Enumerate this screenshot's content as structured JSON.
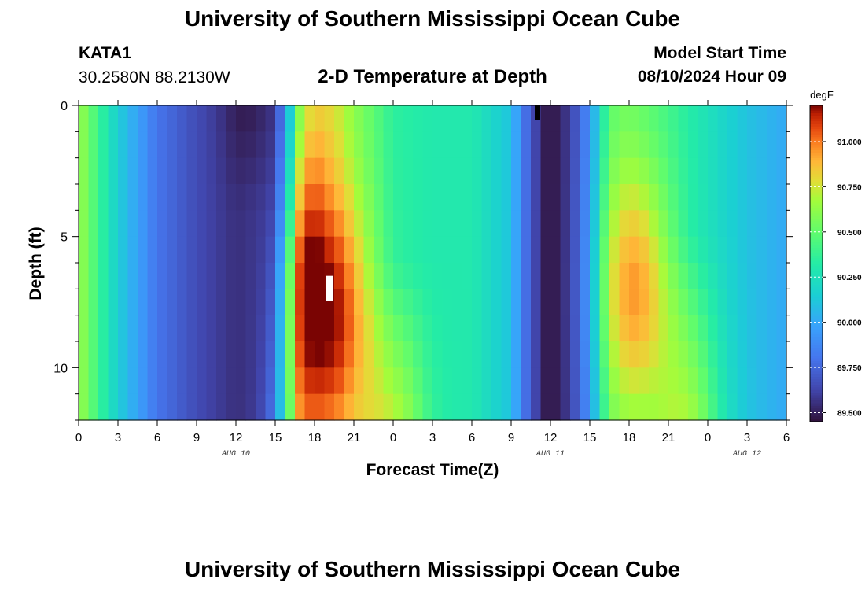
{
  "header": {
    "title": "University of Southern Mississippi Ocean Cube",
    "footer_title": "University of Southern Mississippi Ocean Cube",
    "station_id": "KATA1",
    "station_coords": "30.2580N  88.2130W",
    "plot_title": "2-D Temperature at Depth",
    "model_start_label": "Model Start Time",
    "model_start_value": "08/10/2024 Hour 09"
  },
  "chart_data": {
    "type": "heatmap",
    "title": "2-D Temperature at Depth",
    "xlabel": "Forecast Time(Z)",
    "ylabel": "Depth (ft)",
    "x_tick_labels": [
      "0",
      "3",
      "6",
      "9",
      "12",
      "15",
      "18",
      "21",
      "0",
      "3",
      "6",
      "9",
      "12",
      "15",
      "18",
      "21",
      "0",
      "3",
      "6"
    ],
    "x_start_hour": 0,
    "x_end_hour": 54,
    "x_tick_step_hours": 3,
    "date_labels": [
      {
        "label": "AUG 10",
        "hour": 12
      },
      {
        "label": "AUG 11",
        "hour": 36
      },
      {
        "label": "AUG 12",
        "hour": 51
      }
    ],
    "y_tick_labels": [
      "0",
      "5",
      "10"
    ],
    "ylim": [
      0,
      12
    ],
    "colorbar": {
      "units": "degF",
      "min": 89.45,
      "max": 91.2,
      "ticks": [
        "91.000",
        "90.750",
        "90.500",
        "90.250",
        "90.000",
        "89.750",
        "89.500"
      ],
      "tick_values": [
        91.0,
        90.75,
        90.5,
        90.25,
        90.0,
        89.75,
        89.5
      ]
    },
    "surface_profile_hours": [
      0,
      3,
      6,
      9,
      12,
      15,
      16,
      17,
      18,
      19.5,
      21,
      24,
      27,
      30,
      33,
      34,
      35,
      35.5,
      36,
      37.5,
      39,
      40,
      41,
      42,
      43.5,
      45,
      48,
      51,
      54
    ],
    "surface_profile_degF": [
      90.65,
      90.15,
      89.8,
      89.65,
      89.55,
      89.6,
      90.05,
      90.65,
      90.8,
      90.75,
      90.6,
      90.35,
      90.3,
      90.3,
      90.1,
      89.8,
      89.6,
      89.5,
      89.45,
      89.6,
      89.9,
      90.3,
      90.5,
      90.5,
      90.45,
      90.4,
      90.25,
      90.1,
      90.0
    ],
    "notes": [
      "Warm core (~91 degF) near hour 19 at depth 6-12 ft",
      "Warm core (~91 degF) near hour 42 at depth 5-11 ft",
      "Coldest values (~89.45 degF) near hour 35-36"
    ]
  }
}
